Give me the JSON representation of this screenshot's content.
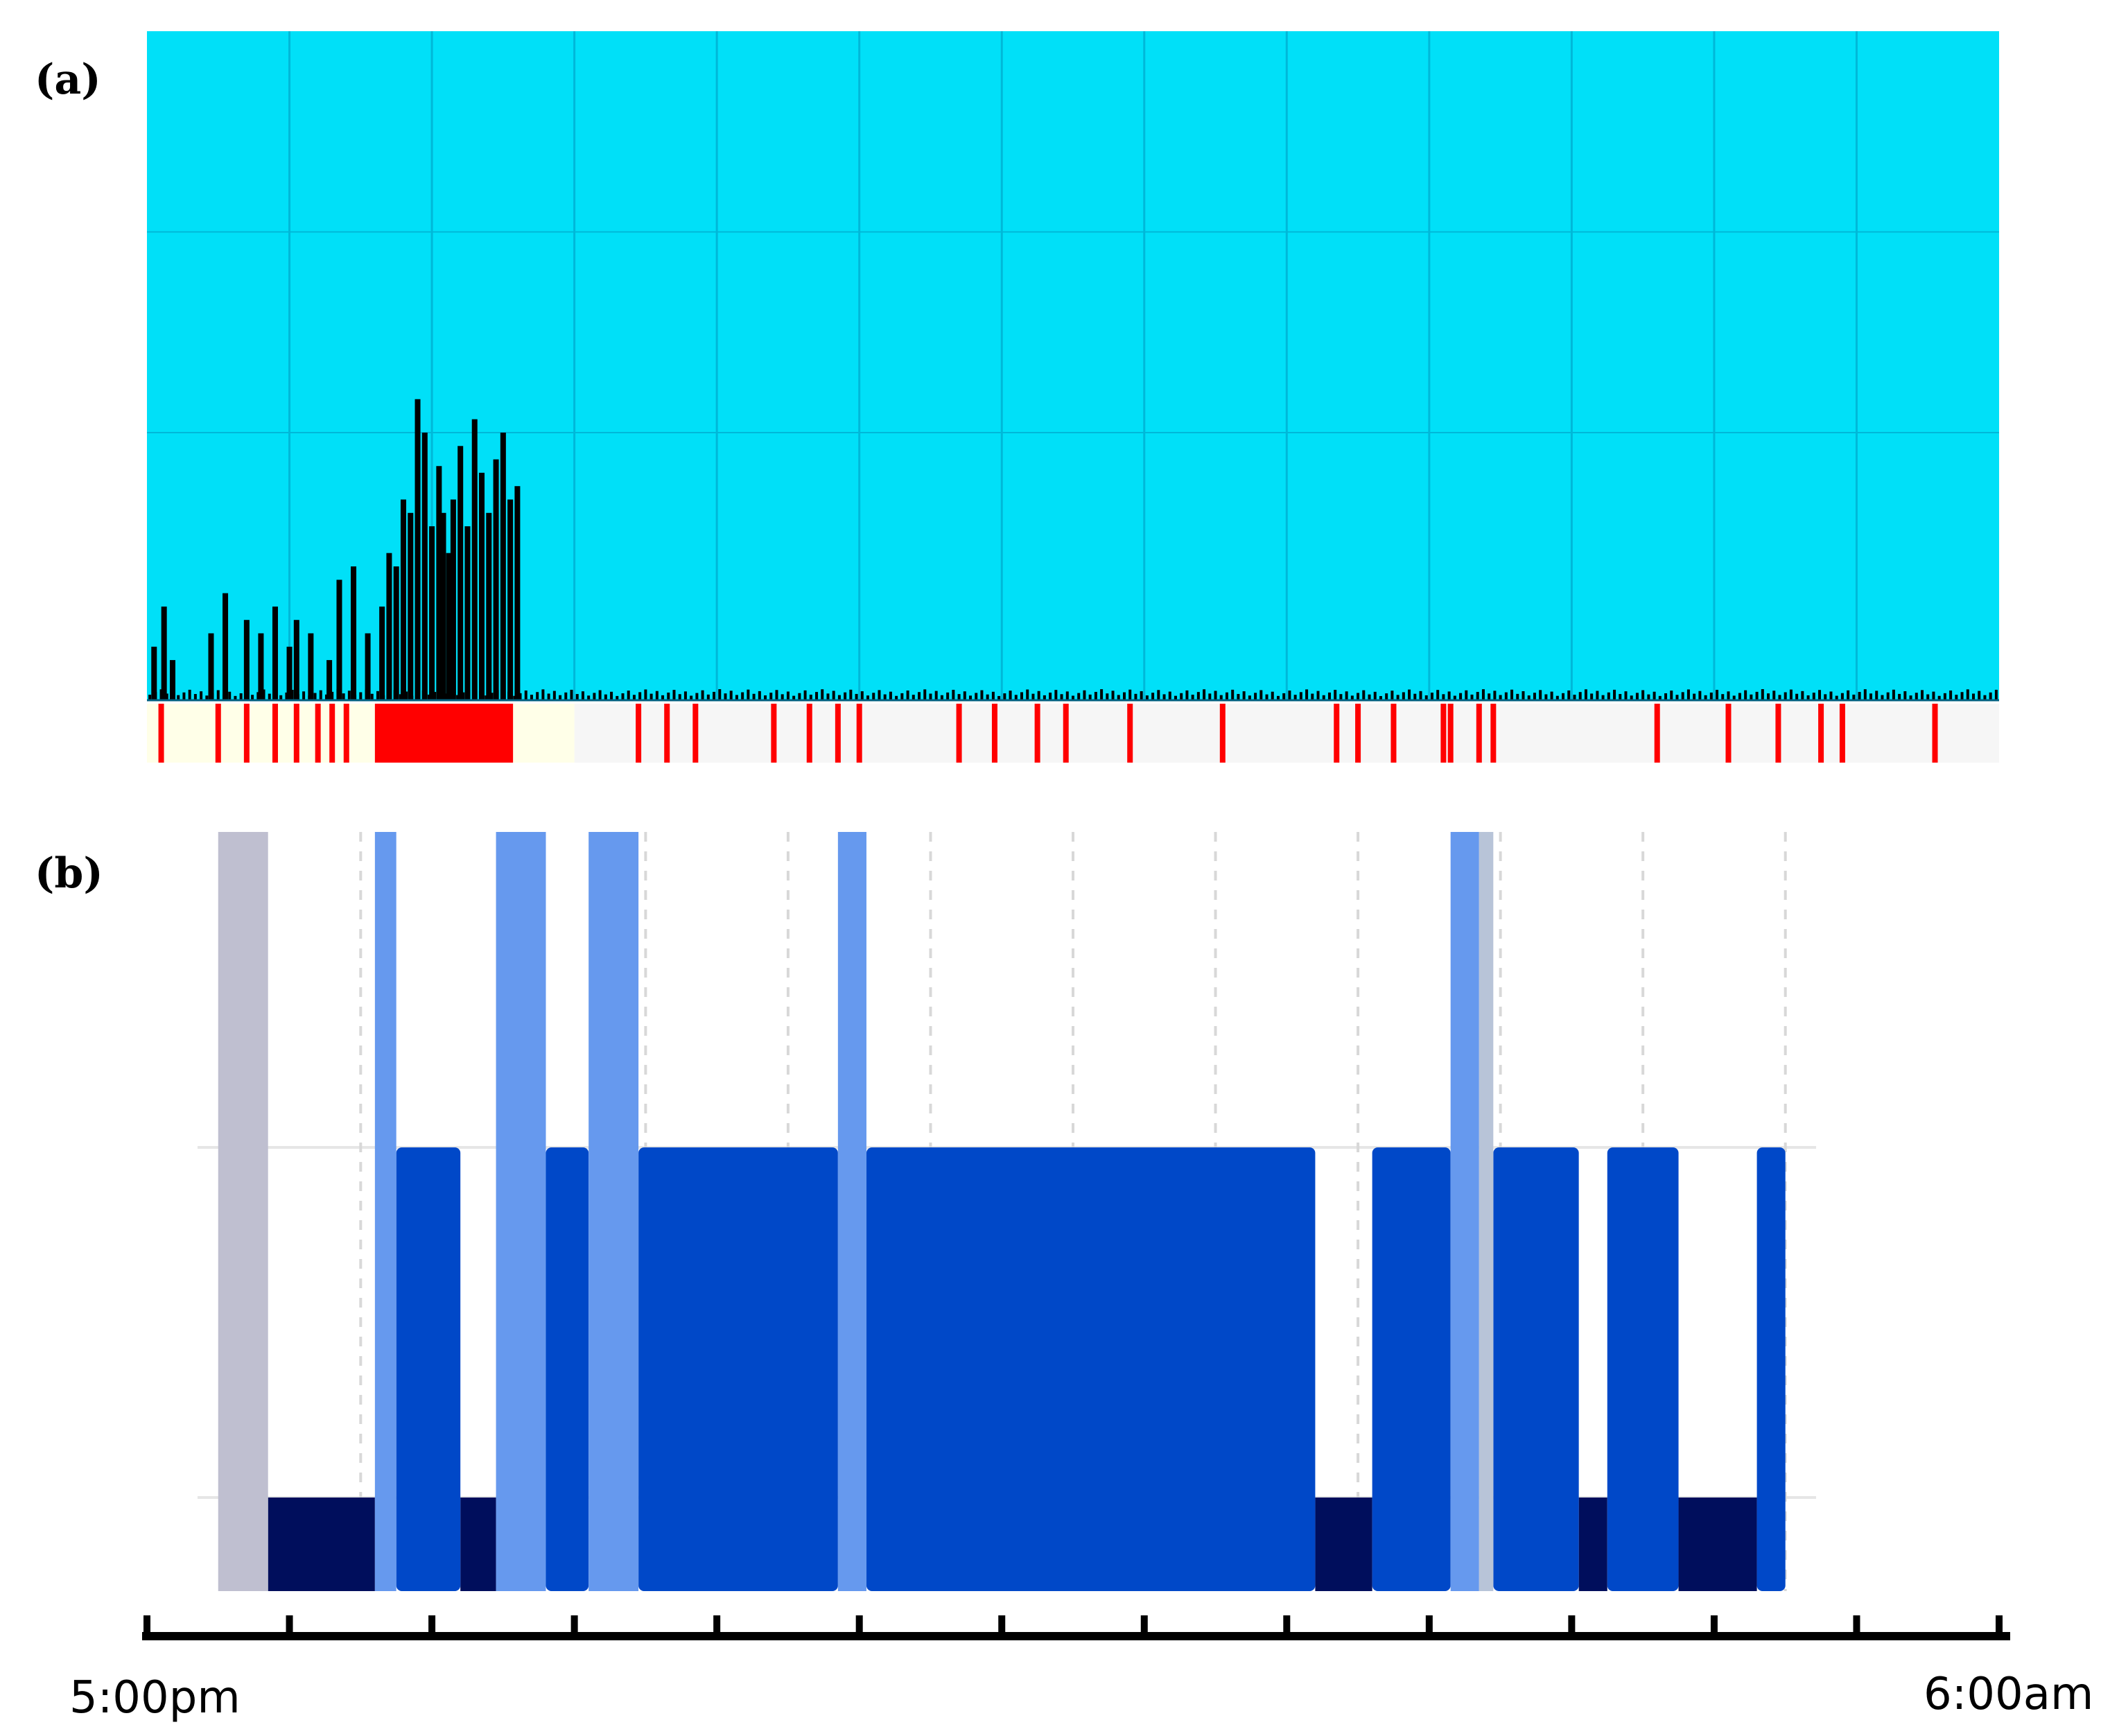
{
  "figure": {
    "panel_a_label": "(a)",
    "panel_b_label": "(b)",
    "x_start_label": "5:00pm",
    "x_end_label": "6:00am"
  },
  "colors": {
    "activity_background": "#00e0f8",
    "activity_grid": "#00b8d8",
    "activity_bar": "#000000",
    "marker_red": "#ff0000",
    "marker_strip_bg": "#f6f6f6",
    "marker_strip_light": "#ffffe8",
    "stage_awake": "#bfbfd0",
    "stage_light": "#6699ee",
    "stage_main": "#0048c8",
    "stage_deep": "#000e5c",
    "stage_gap": "#b8c4d8",
    "axis": "#000000"
  },
  "chart_data": [
    {
      "type": "bar",
      "panel": "(a)",
      "xlim": [
        0,
        13
      ],
      "ylim": [
        0,
        100
      ],
      "grid": true,
      "values_note_units": "hours after 5:00pm; relative activity",
      "activity": [
        [
          0.05,
          8
        ],
        [
          0.12,
          14
        ],
        [
          0.18,
          6
        ],
        [
          0.45,
          10
        ],
        [
          0.55,
          16
        ],
        [
          0.7,
          12
        ],
        [
          0.8,
          10
        ],
        [
          0.9,
          14
        ],
        [
          1.0,
          8
        ],
        [
          1.05,
          12
        ],
        [
          1.15,
          10
        ],
        [
          1.28,
          6
        ],
        [
          1.35,
          18
        ],
        [
          1.45,
          20
        ],
        [
          1.55,
          10
        ],
        [
          1.65,
          14
        ],
        [
          1.7,
          22
        ],
        [
          1.75,
          20
        ],
        [
          1.8,
          30
        ],
        [
          1.85,
          28
        ],
        [
          1.9,
          45
        ],
        [
          1.95,
          40
        ],
        [
          2.0,
          26
        ],
        [
          2.05,
          35
        ],
        [
          2.08,
          28
        ],
        [
          2.12,
          22
        ],
        [
          2.15,
          30
        ],
        [
          2.2,
          38
        ],
        [
          2.25,
          26
        ],
        [
          2.3,
          42
        ],
        [
          2.35,
          34
        ],
        [
          2.4,
          28
        ],
        [
          2.45,
          36
        ],
        [
          2.5,
          40
        ],
        [
          2.55,
          30
        ],
        [
          2.6,
          32
        ]
      ],
      "markers": [
        0.1,
        0.5,
        0.7,
        0.9,
        1.05,
        1.2,
        1.3,
        1.4,
        1.65,
        1.95,
        2.0,
        2.05,
        2.1,
        2.15,
        2.2,
        2.25,
        2.3,
        2.35,
        2.4,
        2.45,
        2.5,
        2.55,
        3.45,
        3.65,
        3.85,
        4.4,
        4.65,
        4.85,
        5.0,
        5.7,
        5.95,
        6.25,
        6.45,
        6.9,
        7.55,
        8.35,
        8.5,
        8.75,
        9.1,
        9.15,
        9.35,
        9.45,
        10.6,
        11.1,
        11.45,
        11.75,
        11.9,
        12.55
      ]
    },
    {
      "type": "area",
      "panel": "(b)",
      "xlim": [
        0,
        13
      ],
      "ylim": [
        0,
        3
      ],
      "grid": true,
      "series": [
        {
          "stage": "awake",
          "segments": [
            [
              0.5,
              0.85,
              3
            ]
          ]
        },
        {
          "stage": "light",
          "segments": [
            [
              1.6,
              1.75,
              3
            ],
            [
              2.45,
              2.8,
              3
            ],
            [
              3.1,
              3.45,
              3
            ],
            [
              4.85,
              5.05,
              3
            ],
            [
              9.15,
              9.35,
              3
            ]
          ]
        },
        {
          "stage": "main",
          "segments": [
            [
              1.75,
              2.2,
              2
            ],
            [
              2.8,
              3.1,
              2
            ],
            [
              3.45,
              4.85,
              2
            ],
            [
              5.05,
              8.2,
              2
            ],
            [
              8.6,
              9.15,
              2
            ],
            [
              9.45,
              10.05,
              2
            ],
            [
              10.25,
              10.75,
              2
            ],
            [
              11.3,
              11.5,
              2
            ]
          ]
        },
        {
          "stage": "deep",
          "segments": [
            [
              0.85,
              1.6,
              1
            ],
            [
              2.2,
              2.45,
              1
            ],
            [
              8.2,
              8.6,
              1
            ],
            [
              10.05,
              10.25,
              1
            ],
            [
              10.75,
              11.3,
              1
            ]
          ]
        },
        {
          "stage": "gap",
          "segments": [
            [
              9.35,
              9.45,
              3
            ]
          ]
        }
      ]
    }
  ]
}
